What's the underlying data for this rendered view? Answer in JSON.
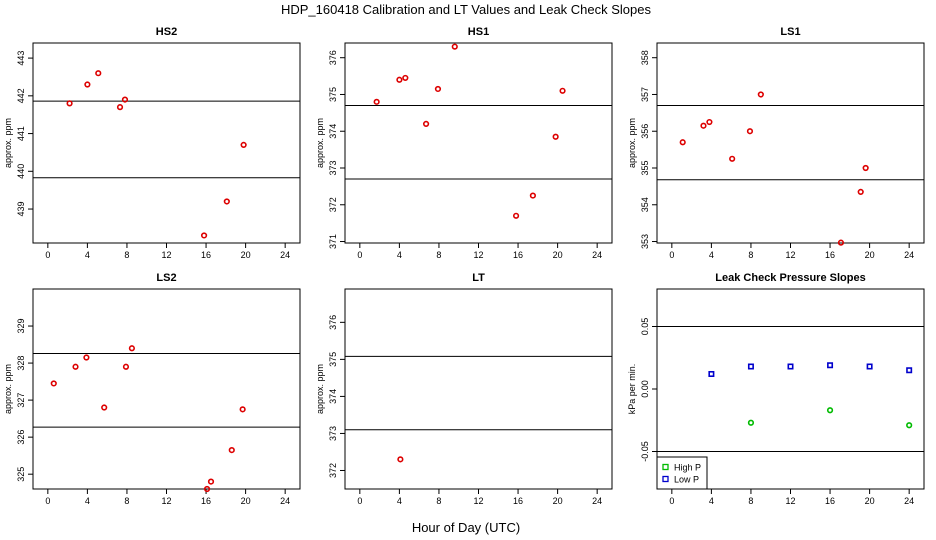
{
  "figure": {
    "title": "HDP_160418  Calibration and LT Values and Leak Check Slopes",
    "xlabel": "Hour of Day (UTC)"
  },
  "chart_data": [
    {
      "type": "scatter",
      "title": "HS2",
      "ylabel": "approx. ppm",
      "xlim": [
        -1.5,
        25.5
      ],
      "ylim": [
        438.1,
        443.4
      ],
      "xticks": [
        0,
        4,
        8,
        12,
        16,
        20,
        24
      ],
      "yticks": [
        439,
        440,
        441,
        442,
        443
      ],
      "hlines": [
        441.86,
        439.83
      ],
      "series": [
        {
          "color": "#dd0000",
          "points": [
            [
              2.2,
              441.8
            ],
            [
              4.0,
              442.3
            ],
            [
              5.1,
              442.6
            ],
            [
              7.3,
              441.7
            ],
            [
              7.8,
              441.9
            ],
            [
              15.8,
              438.3
            ],
            [
              18.1,
              439.2
            ],
            [
              19.8,
              440.7
            ]
          ]
        }
      ]
    },
    {
      "type": "scatter",
      "title": "HS1",
      "ylabel": "approx. ppm",
      "xlim": [
        -1.5,
        25.5
      ],
      "ylim": [
        370.96,
        376.4
      ],
      "xticks": [
        0,
        4,
        8,
        12,
        16,
        20,
        24
      ],
      "yticks": [
        371,
        372,
        373,
        374,
        375,
        376
      ],
      "hlines": [
        374.7,
        372.7
      ],
      "series": [
        {
          "color": "#dd0000",
          "points": [
            [
              1.7,
              374.8
            ],
            [
              4.0,
              375.4
            ],
            [
              4.6,
              375.45
            ],
            [
              6.7,
              374.2
            ],
            [
              7.9,
              375.15
            ],
            [
              9.6,
              376.3
            ],
            [
              15.8,
              371.7
            ],
            [
              17.5,
              372.25
            ],
            [
              19.8,
              373.85
            ],
            [
              20.5,
              375.1
            ]
          ]
        }
      ]
    },
    {
      "type": "scatter",
      "title": "LS1",
      "ylabel": "approx. ppm",
      "xlim": [
        -1.5,
        25.5
      ],
      "ylim": [
        352.96,
        358.4
      ],
      "xticks": [
        0,
        4,
        8,
        12,
        16,
        20,
        24
      ],
      "yticks": [
        353,
        354,
        355,
        356,
        357,
        358
      ],
      "hlines": [
        356.7,
        354.68
      ],
      "series": [
        {
          "color": "#dd0000",
          "points": [
            [
              1.1,
              355.7
            ],
            [
              3.2,
              356.15
            ],
            [
              3.8,
              356.25
            ],
            [
              6.1,
              355.25
            ],
            [
              7.9,
              356.0
            ],
            [
              9.0,
              357.0
            ],
            [
              17.1,
              352.97
            ],
            [
              19.1,
              354.35
            ],
            [
              19.6,
              355.0
            ]
          ]
        }
      ]
    },
    {
      "type": "scatter",
      "title": "LS2",
      "ylabel": "approx. ppm",
      "xlim": [
        -1.5,
        25.5
      ],
      "ylim": [
        324.6,
        330.0
      ],
      "xticks": [
        0,
        4,
        8,
        12,
        16,
        20,
        24
      ],
      "yticks": [
        325,
        326,
        327,
        328,
        329
      ],
      "hlines": [
        328.26,
        326.27
      ],
      "series": [
        {
          "color": "#dd0000",
          "points": [
            [
              0.6,
              327.45
            ],
            [
              2.8,
              327.9
            ],
            [
              3.9,
              328.15
            ],
            [
              5.7,
              326.8
            ],
            [
              7.9,
              327.9
            ],
            [
              8.5,
              328.4
            ],
            [
              16.1,
              324.6
            ],
            [
              16.5,
              324.8
            ],
            [
              18.6,
              325.65
            ],
            [
              19.7,
              326.75
            ]
          ]
        }
      ]
    },
    {
      "type": "scatter",
      "title": "LT",
      "ylabel": "approx. ppm",
      "xlim": [
        -1.5,
        25.5
      ],
      "ylim": [
        371.5,
        376.9
      ],
      "xticks": [
        0,
        4,
        8,
        12,
        16,
        20,
        24
      ],
      "yticks": [
        372,
        373,
        374,
        375,
        376
      ],
      "hlines": [
        375.08,
        373.1
      ],
      "series": [
        {
          "color": "#dd0000",
          "points": [
            [
              4.1,
              372.3
            ]
          ]
        }
      ]
    },
    {
      "type": "scatter",
      "title": "Leak Check Pressure Slopes",
      "ylabel": "kPa per min.",
      "xlim": [
        -1.5,
        25.5
      ],
      "ylim": [
        -0.08,
        0.08
      ],
      "xticks": [
        0,
        4,
        8,
        12,
        16,
        20,
        24
      ],
      "yticks": [
        -0.05,
        0.0,
        0.05
      ],
      "ytick_labels": [
        "-0.05",
        "0.00",
        "0.05"
      ],
      "hlines": [
        0.05,
        -0.05
      ],
      "legend": {
        "position": "bottom-left",
        "entries": [
          {
            "label": "High P",
            "color": "#00bb00"
          },
          {
            "label": "Low P",
            "color": "#0000cc"
          }
        ]
      },
      "series": [
        {
          "name": "High P",
          "color": "#00bb00",
          "points": [
            [
              8,
              -0.027
            ],
            [
              16,
              -0.017
            ],
            [
              24,
              -0.029
            ]
          ]
        },
        {
          "name": "Low P",
          "color": "#0000cc",
          "points": [
            [
              4,
              0.012
            ],
            [
              8,
              0.018
            ],
            [
              12,
              0.018
            ],
            [
              16,
              0.019
            ],
            [
              20,
              0.018
            ],
            [
              24,
              0.015
            ]
          ]
        }
      ]
    }
  ]
}
